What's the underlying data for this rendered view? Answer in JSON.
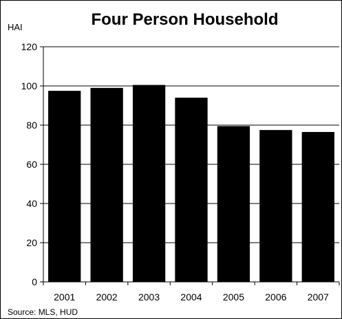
{
  "chart_data": {
    "type": "bar",
    "title": "Four Person Household",
    "ylabel": "HAI",
    "xlabel": "",
    "categories": [
      "2001",
      "2002",
      "2003",
      "2004",
      "2005",
      "2006",
      "2007"
    ],
    "values": [
      97.5,
      99,
      100.5,
      94,
      79.5,
      77.5,
      76.5
    ],
    "ylim": [
      0,
      120
    ],
    "yticks": [
      0,
      20,
      40,
      60,
      80,
      100,
      120
    ],
    "grid": true,
    "bar_color": "#000000",
    "source": "Source: MLS, HUD"
  }
}
